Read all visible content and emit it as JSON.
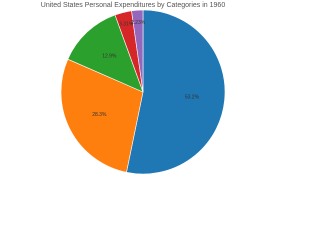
{
  "chart_data": {
    "type": "pie",
    "title": "United States Personal Expenditures by Categories in 1960",
    "categories": [
      null,
      null,
      null,
      null,
      null
    ],
    "values": [
      53.2,
      28.3,
      12.9,
      3.31,
      2.23
    ],
    "value_labels": [
      "53.2%",
      "28.3%",
      "12.9%",
      "3.31%",
      "2.23%"
    ],
    "colors": [
      "#1f77b4",
      "#ff7f0e",
      "#2ca02c",
      "#d62728",
      "#9467bd"
    ],
    "direction": "clockwise",
    "sort": "descending"
  }
}
